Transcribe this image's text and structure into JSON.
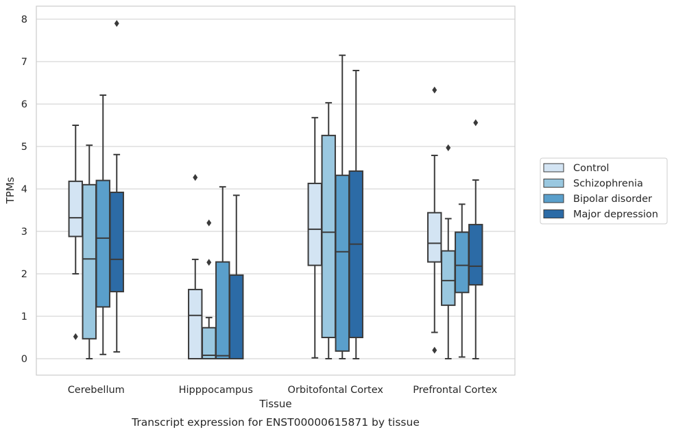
{
  "chart_data": {
    "type": "box",
    "title": "",
    "caption": "Transcript expression for ENST00000615871 by tissue",
    "xlabel": "Tissue",
    "ylabel": "TPMs",
    "ylim": [
      -0.4,
      8.3
    ],
    "yticks": [
      0,
      1,
      2,
      3,
      4,
      5,
      6,
      7,
      8
    ],
    "grid": "horizontal",
    "legend_position": "right",
    "categories": [
      "Cerebellum",
      "Hipppocampus",
      "Orbitofontal Cortex",
      "Prefrontal Cortex"
    ],
    "series": [
      {
        "name": "Control",
        "color": "#d3e4f3",
        "boxes": [
          {
            "whisker_low": 2.0,
            "q1": 2.88,
            "median": 3.32,
            "q3": 4.18,
            "whisker_high": 5.5,
            "outliers": [
              0.52
            ]
          },
          {
            "whisker_low": 0.0,
            "q1": 0.0,
            "median": 1.02,
            "q3": 1.63,
            "whisker_high": 2.34,
            "outliers": [
              4.27
            ]
          },
          {
            "whisker_low": 0.02,
            "q1": 2.2,
            "median": 3.05,
            "q3": 4.13,
            "whisker_high": 5.68,
            "outliers": []
          },
          {
            "whisker_low": 0.62,
            "q1": 2.28,
            "median": 2.72,
            "q3": 3.44,
            "whisker_high": 4.79,
            "outliers": [
              0.2,
              6.33
            ]
          }
        ]
      },
      {
        "name": "Schizophrenia",
        "color": "#9ac8e0",
        "boxes": [
          {
            "whisker_low": 0.0,
            "q1": 0.47,
            "median": 2.35,
            "q3": 4.1,
            "whisker_high": 5.03,
            "outliers": []
          },
          {
            "whisker_low": 0.0,
            "q1": 0.0,
            "median": 0.08,
            "q3": 0.73,
            "whisker_high": 0.97,
            "outliers": [
              3.2,
              2.27
            ]
          },
          {
            "whisker_low": 0.0,
            "q1": 0.5,
            "median": 2.98,
            "q3": 5.26,
            "whisker_high": 6.03,
            "outliers": []
          },
          {
            "whisker_low": 0.0,
            "q1": 1.26,
            "median": 1.84,
            "q3": 2.54,
            "whisker_high": 3.3,
            "outliers": [
              4.97
            ]
          }
        ]
      },
      {
        "name": "Bipolar disorder",
        "color": "#5a9fcb",
        "boxes": [
          {
            "whisker_low": 0.1,
            "q1": 1.22,
            "median": 2.84,
            "q3": 4.2,
            "whisker_high": 6.21,
            "outliers": []
          },
          {
            "whisker_low": 0.0,
            "q1": 0.0,
            "median": 0.07,
            "q3": 2.28,
            "whisker_high": 4.05,
            "outliers": []
          },
          {
            "whisker_low": 0.0,
            "q1": 0.18,
            "median": 2.52,
            "q3": 4.32,
            "whisker_high": 7.15,
            "outliers": []
          },
          {
            "whisker_low": 0.04,
            "q1": 1.56,
            "median": 2.2,
            "q3": 2.98,
            "whisker_high": 3.64,
            "outliers": []
          }
        ]
      },
      {
        "name": "Major depression",
        "color": "#2c6ba6",
        "boxes": [
          {
            "whisker_low": 0.16,
            "q1": 1.58,
            "median": 2.34,
            "q3": 3.92,
            "whisker_high": 4.81,
            "outliers": [
              7.9
            ]
          },
          {
            "whisker_low": 0.0,
            "q1": 0.0,
            "median": 0.0,
            "q3": 1.97,
            "whisker_high": 3.85,
            "outliers": []
          },
          {
            "whisker_low": 0.0,
            "q1": 0.5,
            "median": 2.7,
            "q3": 4.42,
            "whisker_high": 6.79,
            "outliers": []
          },
          {
            "whisker_low": 0.0,
            "q1": 1.74,
            "median": 2.18,
            "q3": 3.16,
            "whisker_high": 4.21,
            "outliers": [
              5.56
            ]
          }
        ]
      }
    ]
  }
}
